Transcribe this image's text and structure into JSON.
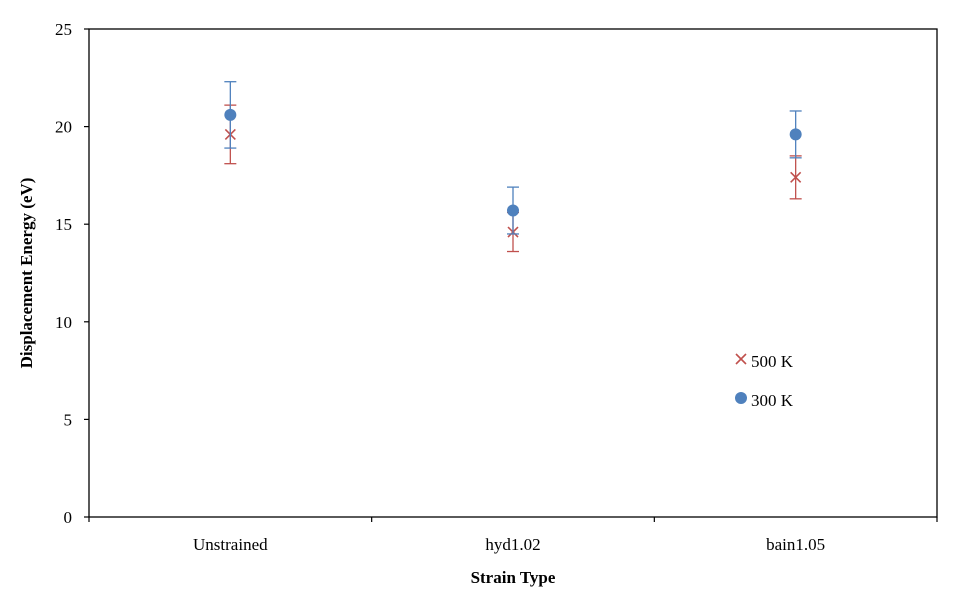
{
  "chart_data": {
    "type": "scatter",
    "title": "",
    "xlabel": "Strain Type",
    "ylabel": "Displacement Energy (eV)",
    "categories": [
      "Unstrained",
      "hyd1.02",
      "bain1.05"
    ],
    "ylim": [
      0,
      25
    ],
    "yticks": [
      "0",
      "5",
      "10",
      "15",
      "20",
      "25"
    ],
    "grid": false,
    "legend_position": "inside-lower-right",
    "series": [
      {
        "name": "500 K",
        "marker": "x",
        "color": "#c0504d",
        "values": [
          19.6,
          14.6,
          17.4
        ],
        "error": [
          1.5,
          1.0,
          1.1
        ]
      },
      {
        "name": "300 K",
        "marker": "circle",
        "color": "#4f81bd",
        "values": [
          20.6,
          15.7,
          19.6
        ],
        "error": [
          1.7,
          1.2,
          1.2
        ]
      }
    ]
  }
}
